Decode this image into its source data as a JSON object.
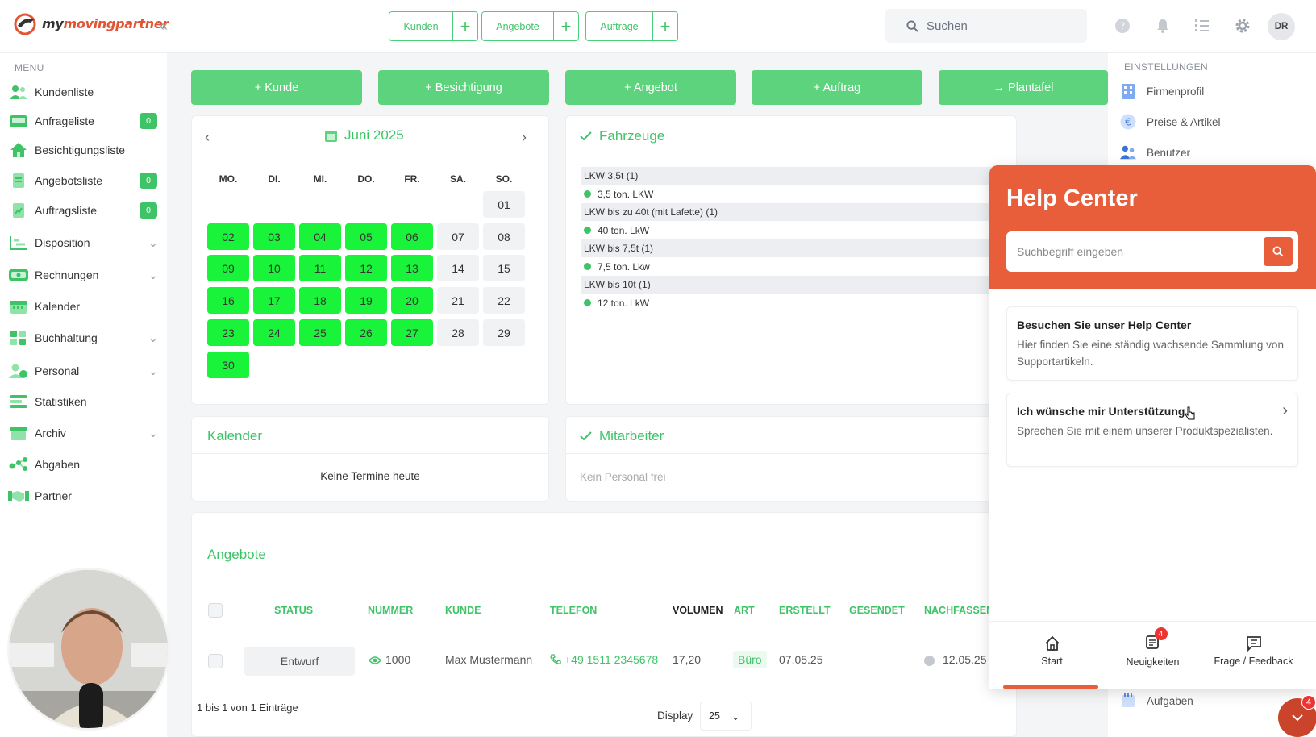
{
  "app": {
    "logo_prefix": "my",
    "logo_main": "movingpartner"
  },
  "top": {
    "quick": [
      {
        "label": "Kunden"
      },
      {
        "label": "Angebote"
      },
      {
        "label": "Aufträge"
      }
    ],
    "plus": "+",
    "search_placeholder": "Suchen",
    "avatar": "DR"
  },
  "sidebar": {
    "heading": "MENU",
    "items": [
      {
        "label": "Kundenliste",
        "icon": "users-icon"
      },
      {
        "label": "Anfrageliste",
        "icon": "inbox-icon",
        "badge": "0"
      },
      {
        "label": "Besichtigungsliste",
        "icon": "house-icon"
      },
      {
        "label": "Angebotsliste",
        "icon": "document-icon",
        "badge": "0"
      },
      {
        "label": "Auftragsliste",
        "icon": "document-icon",
        "badge": "0"
      },
      {
        "label": "Disposition",
        "icon": "chart-icon"
      },
      {
        "label": "Rechnungen",
        "icon": "invoice-icon"
      },
      {
        "label": "Kalender",
        "icon": "calendar-icon"
      },
      {
        "label": "Buchhaltung",
        "icon": "grid-icon"
      },
      {
        "label": "Personal",
        "icon": "person-icon"
      },
      {
        "label": "Statistiken",
        "icon": "list-icon"
      },
      {
        "label": "Archiv",
        "icon": "archive-icon"
      },
      {
        "label": "Abgaben",
        "icon": "network-icon"
      },
      {
        "label": "Partner",
        "icon": "handshake-icon"
      }
    ]
  },
  "actions": [
    {
      "label": "+ Kunde"
    },
    {
      "label": "+ Besichtigung"
    },
    {
      "label": "+ Angebot"
    },
    {
      "label": "+ Auftrag"
    },
    {
      "label": "→ Plantafel"
    }
  ],
  "calendar": {
    "title": "Juni 2025",
    "weekdays": [
      "MO.",
      "DI.",
      "MI.",
      "DO.",
      "FR.",
      "SA.",
      "SO."
    ],
    "rows": [
      [
        null,
        null,
        null,
        null,
        null,
        null,
        {
          "d": "01",
          "g": false
        }
      ],
      [
        {
          "d": "02",
          "g": true
        },
        {
          "d": "03",
          "g": true
        },
        {
          "d": "04",
          "g": true
        },
        {
          "d": "05",
          "g": true
        },
        {
          "d": "06",
          "g": true
        },
        {
          "d": "07",
          "g": false
        },
        {
          "d": "08",
          "g": false
        }
      ],
      [
        {
          "d": "09",
          "g": true
        },
        {
          "d": "10",
          "g": true
        },
        {
          "d": "11",
          "g": true
        },
        {
          "d": "12",
          "g": true
        },
        {
          "d": "13",
          "g": true
        },
        {
          "d": "14",
          "g": false
        },
        {
          "d": "15",
          "g": false
        }
      ],
      [
        {
          "d": "16",
          "g": true
        },
        {
          "d": "17",
          "g": true
        },
        {
          "d": "18",
          "g": true
        },
        {
          "d": "19",
          "g": true
        },
        {
          "d": "20",
          "g": true
        },
        {
          "d": "21",
          "g": false
        },
        {
          "d": "22",
          "g": false
        }
      ],
      [
        {
          "d": "23",
          "g": true
        },
        {
          "d": "24",
          "g": true
        },
        {
          "d": "25",
          "g": true
        },
        {
          "d": "26",
          "g": true
        },
        {
          "d": "27",
          "g": true
        },
        {
          "d": "28",
          "g": false
        },
        {
          "d": "29",
          "g": false
        }
      ],
      [
        {
          "d": "30",
          "g": true
        },
        null,
        null,
        null,
        null,
        null,
        null
      ]
    ]
  },
  "fahrzeuge": {
    "title": "Fahrzeuge",
    "rows": [
      {
        "type": "grp",
        "label": "LKW 3,5t (1)"
      },
      {
        "type": "it",
        "label": "3,5 ton. LKW"
      },
      {
        "type": "grp",
        "label": "LKW bis zu 40t (mit Lafette) (1)"
      },
      {
        "type": "it",
        "label": "40 ton. LkW"
      },
      {
        "type": "grp",
        "label": "LKW bis 7,5t (1)"
      },
      {
        "type": "it",
        "label": "7,5 ton. Lkw"
      },
      {
        "type": "grp",
        "label": "LKW bis 10t (1)"
      },
      {
        "type": "it",
        "label": "12 ton. LkW"
      }
    ]
  },
  "kalender_card": {
    "title": "Kalender",
    "empty": "Keine Termine heute"
  },
  "mitarbeiter": {
    "title": "Mitarbeiter",
    "empty": "Kein Personal frei"
  },
  "angebote": {
    "title": "Angebote",
    "headers": [
      "STATUS",
      "NUMMER",
      "KUNDE",
      "TELEFON",
      "VOLUMEN",
      "ART",
      "ERSTELLT",
      "GESENDET",
      "NACHFASSEN"
    ],
    "row": {
      "status": "Entwurf",
      "nummer": "1000",
      "kunde": "Max Mustermann",
      "telefon": "+49 1511 2345678",
      "volumen": "17,20",
      "art": "Büro",
      "erstellt": "07.05.25",
      "nachfassen": "12.05.25"
    },
    "footer": "1 bis 1 von 1 Einträge",
    "display_label": "Display",
    "display_value": "25"
  },
  "settings": {
    "heading": "EINSTELLUNGEN",
    "items": [
      {
        "label": "Firmenprofil",
        "icon": "building-icon"
      },
      {
        "label": "Preise & Artikel",
        "icon": "euro-icon"
      },
      {
        "label": "Benutzer",
        "icon": "users-icon"
      },
      {
        "label": "Aufgaben",
        "icon": "calendar-icon"
      }
    ]
  },
  "help": {
    "title": "Help Center",
    "placeholder": "Suchbegriff eingeben",
    "cards": [
      {
        "title": "Besuchen Sie unser Help Center",
        "text": "Hier finden Sie eine ständig wachsende Sammlung von Supportartikeln."
      },
      {
        "title": "Ich wünsche mir Unterstützung",
        "text": "Sprechen Sie mit einem unserer Produktspezialisten."
      }
    ],
    "tabs": [
      {
        "label": "Start"
      },
      {
        "label": "Neuigkeiten",
        "badge": "4"
      },
      {
        "label": "Frage / Feedback"
      }
    ],
    "fab_badge": "4"
  },
  "colors": {
    "accent_green": "#3ec467",
    "calendar_green": "#19f43a",
    "help_orange": "#e85d3a"
  }
}
